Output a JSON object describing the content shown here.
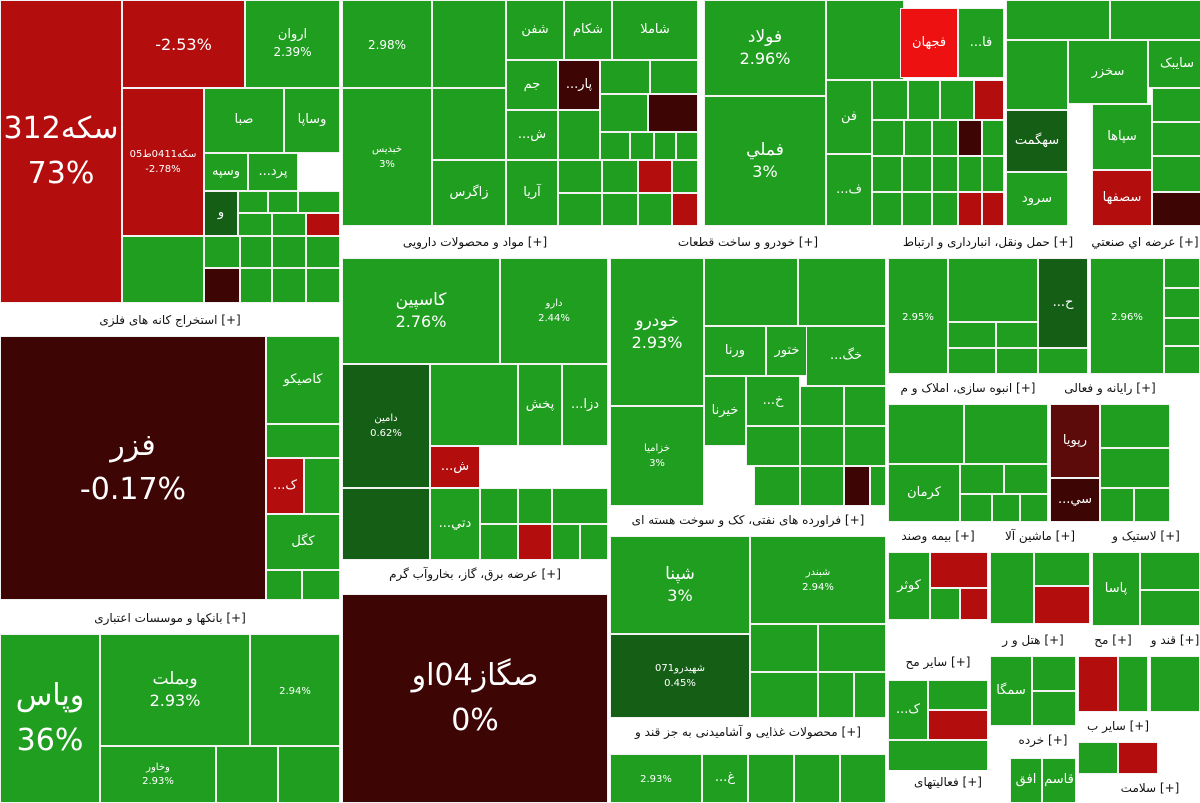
{
  "colors": {
    "up": "#1f9e1f",
    "up_light": "#2bb52b",
    "up_dark": "#155e15",
    "up_darker": "#0c4a0c",
    "down": "#b30d0d",
    "down_bright": "#ee1111",
    "down_dark": "#3e0505",
    "down_darker": "#5c0a0a",
    "header_bg": "#ffffff"
  },
  "groups": [
    {
      "title": "",
      "cells": [
        {
          "name": "سکه312",
          "pct": "73%",
          "c": "down",
          "size": "xl"
        },
        {
          "name": "",
          "pct": "-2.53%",
          "c": "down",
          "size": "m"
        },
        {
          "name": "اروان",
          "pct": "2.39%",
          "c": "up",
          "size": "s"
        },
        {
          "name": "سکه0411ط05",
          "pct": "-2.78%",
          "c": "down",
          "size": "xs"
        },
        {
          "name": "صبا",
          "pct": "",
          "c": "up",
          "size": "s"
        },
        {
          "name": "وساپا",
          "pct": "",
          "c": "up",
          "size": "s"
        },
        {
          "name": "وسپه",
          "pct": "",
          "c": "up",
          "size": "s"
        },
        {
          "name": "پرد...",
          "pct": "",
          "c": "up",
          "size": "s"
        },
        {
          "name": "و",
          "pct": "",
          "c": "up_dark",
          "size": "s"
        },
        {
          "name": "",
          "pct": "",
          "c": "up",
          "size": "xs"
        }
      ]
    },
    {
      "title": "",
      "cells": [
        {
          "name": "",
          "pct": "2.98%",
          "c": "up",
          "size": "s"
        },
        {
          "name": "خبدیس",
          "pct": "3%",
          "c": "up",
          "size": "xs"
        },
        {
          "name": "شفن",
          "pct": "",
          "c": "up",
          "size": "s"
        },
        {
          "name": "شکام",
          "pct": "",
          "c": "up",
          "size": "s"
        },
        {
          "name": "شاملا",
          "pct": "",
          "c": "up",
          "size": "s"
        },
        {
          "name": "جم",
          "pct": "",
          "c": "up",
          "size": "s"
        },
        {
          "name": "پار...",
          "pct": "",
          "c": "down_dark",
          "size": "s"
        },
        {
          "name": "ش...",
          "pct": "",
          "c": "up",
          "size": "s"
        },
        {
          "name": "زاگرس",
          "pct": "",
          "c": "up",
          "size": "s"
        },
        {
          "name": "آریا",
          "pct": "",
          "c": "up",
          "size": "s"
        }
      ]
    },
    {
      "title": "",
      "cells": [
        {
          "name": "فولاد",
          "pct": "2.96%",
          "c": "up",
          "size": "m"
        },
        {
          "name": "فملي",
          "pct": "3%",
          "c": "up",
          "size": "m"
        },
        {
          "name": "فجهان",
          "pct": "",
          "c": "down_bright",
          "size": "s"
        },
        {
          "name": "فا...",
          "pct": "",
          "c": "up",
          "size": "s"
        },
        {
          "name": "فن",
          "pct": "",
          "c": "up",
          "size": "s"
        },
        {
          "name": "ف...",
          "pct": "",
          "c": "up",
          "size": "s"
        }
      ]
    },
    {
      "title": "",
      "cells": [
        {
          "name": "سخزر",
          "pct": "",
          "c": "up",
          "size": "s"
        },
        {
          "name": "سایبک",
          "pct": "",
          "c": "up",
          "size": "s"
        },
        {
          "name": "سهگمت",
          "pct": "",
          "c": "up_dark",
          "size": "s"
        },
        {
          "name": "سپاها",
          "pct": "",
          "c": "up",
          "size": "s"
        },
        {
          "name": "سرود",
          "pct": "",
          "c": "up",
          "size": "s"
        },
        {
          "name": "سصفها",
          "pct": "",
          "c": "down",
          "size": "s"
        }
      ]
    },
    {
      "title": "[+] مواد و محصولات دارویی",
      "cells": [
        {
          "name": "کاسپین",
          "pct": "2.76%",
          "c": "up",
          "size": "m"
        },
        {
          "name": "دارو",
          "pct": "2.44%",
          "c": "up",
          "size": "xs"
        },
        {
          "name": "دامین",
          "pct": "0.62%",
          "c": "up_dark",
          "size": "xs"
        },
        {
          "name": "پخش",
          "pct": "",
          "c": "up",
          "size": "s"
        },
        {
          "name": "دزا...",
          "pct": "",
          "c": "up",
          "size": "s"
        },
        {
          "name": "ش...",
          "pct": "",
          "c": "down",
          "size": "s"
        },
        {
          "name": "دتي...",
          "pct": "",
          "c": "up",
          "size": "s"
        }
      ]
    },
    {
      "title": "[+] خودرو و ساخت قطعات",
      "cells": [
        {
          "name": "خودرو",
          "pct": "2.93%",
          "c": "up",
          "size": "m"
        },
        {
          "name": "خزامیا",
          "pct": "3%",
          "c": "up",
          "size": "xs"
        },
        {
          "name": "ورنا",
          "pct": "",
          "c": "up",
          "size": "s"
        },
        {
          "name": "ختور",
          "pct": "",
          "c": "up",
          "size": "s"
        },
        {
          "name": "خگ...",
          "pct": "",
          "c": "up",
          "size": "s"
        },
        {
          "name": "خیرنا",
          "pct": "",
          "c": "up",
          "size": "s"
        },
        {
          "name": "خ...",
          "pct": "",
          "c": "up",
          "size": "s"
        }
      ]
    },
    {
      "title": "[+] حمل ونقل، انبارداری و ارتباط",
      "cells": [
        {
          "name": "",
          "pct": "2.95%",
          "c": "up",
          "size": "xs"
        },
        {
          "name": "ح...",
          "pct": "",
          "c": "up_dark",
          "size": "s"
        }
      ]
    },
    {
      "title": "[+] عرضه اي صنعتي",
      "cells": [
        {
          "name": "",
          "pct": "2.96%",
          "c": "up",
          "size": "xs"
        }
      ]
    },
    {
      "title": "[+] استخراج کانه های فلزی",
      "cells": [
        {
          "name": "فزر",
          "pct": "-0.17%",
          "c": "down_dark",
          "size": "xl"
        },
        {
          "name": "کاصیکو",
          "pct": "",
          "c": "up",
          "size": "s"
        },
        {
          "name": "ک...",
          "pct": "",
          "c": "down",
          "size": "s"
        },
        {
          "name": "کگل",
          "pct": "",
          "c": "up",
          "size": "s"
        }
      ]
    },
    {
      "title": "[+] انبوه سازی، املاک و م",
      "cells": [
        {
          "name": "کرمان",
          "pct": "",
          "c": "up",
          "size": "s"
        }
      ]
    },
    {
      "title": "[+] رایانه و فعالی",
      "cells": [
        {
          "name": "رپویا",
          "pct": "",
          "c": "down_darker",
          "size": "s"
        },
        {
          "name": "سي...",
          "pct": "",
          "c": "down_dark",
          "size": "s"
        }
      ]
    },
    {
      "title": "[+] فراورده های نفتی، کک و سوخت هسته ای",
      "cells": [
        {
          "name": "شپنا",
          "pct": "3%",
          "c": "up",
          "size": "m"
        },
        {
          "name": "شبندر",
          "pct": "2.94%",
          "c": "up",
          "size": "xs"
        },
        {
          "name": "شهیدرو071",
          "pct": "0.45%",
          "c": "up_dark",
          "size": "xs"
        }
      ]
    },
    {
      "title": "[+] عرضه برق، گاز، بخاروآب گرم",
      "cells": [
        {
          "name": "صگاز04او",
          "pct": "0%",
          "c": "down_dark",
          "size": "xl"
        }
      ]
    },
    {
      "title": "[+] بیمه وصند",
      "cells": [
        {
          "name": "کوثر",
          "pct": "",
          "c": "up",
          "size": "s"
        }
      ]
    },
    {
      "title": "[+] ماشین آلا",
      "cells": []
    },
    {
      "title": "[+] لاستیک و",
      "cells": [
        {
          "name": "پاسا",
          "pct": "",
          "c": "up",
          "size": "s"
        }
      ]
    },
    {
      "title": "[+] بانکها و موسسات اعتباری",
      "cells": [
        {
          "name": "وپاس",
          "pct": "36%",
          "c": "up",
          "size": "xl"
        },
        {
          "name": "وبملت",
          "pct": "2.93%",
          "c": "up",
          "size": "m"
        },
        {
          "name": "",
          "pct": "2.94%",
          "c": "up",
          "size": "xs"
        },
        {
          "name": "وخاور",
          "pct": "2.93%",
          "c": "up",
          "size": "xs"
        }
      ]
    },
    {
      "title": "[+] محصولات غذایی و آشامیدنی به جز قند و",
      "cells": [
        {
          "name": "",
          "pct": "2.93%",
          "c": "up",
          "size": "xs"
        },
        {
          "name": "غ...",
          "pct": "",
          "c": "up",
          "size": "s"
        }
      ]
    },
    {
      "title": "[+] هتل و ر",
      "cells": [
        {
          "name": "سمگا",
          "pct": "",
          "c": "up",
          "size": "s"
        }
      ]
    },
    {
      "title": "[+] سایر مح",
      "cells": [
        {
          "name": "ک...",
          "pct": "",
          "c": "up",
          "size": "s"
        }
      ]
    },
    {
      "title": "[+] مح",
      "cells": []
    },
    {
      "title": "[+] قند و",
      "cells": []
    },
    {
      "title": "[+] خرده",
      "cells": [
        {
          "name": "افق",
          "pct": "",
          "c": "up",
          "size": "s"
        },
        {
          "name": "قاسم",
          "pct": "",
          "c": "up",
          "size": "s"
        }
      ]
    },
    {
      "title": "[+] سایر ب",
      "cells": []
    },
    {
      "title": "[+] فعالیتهای",
      "cells": []
    },
    {
      "title": "[+] سلامت",
      "cells": []
    }
  ]
}
